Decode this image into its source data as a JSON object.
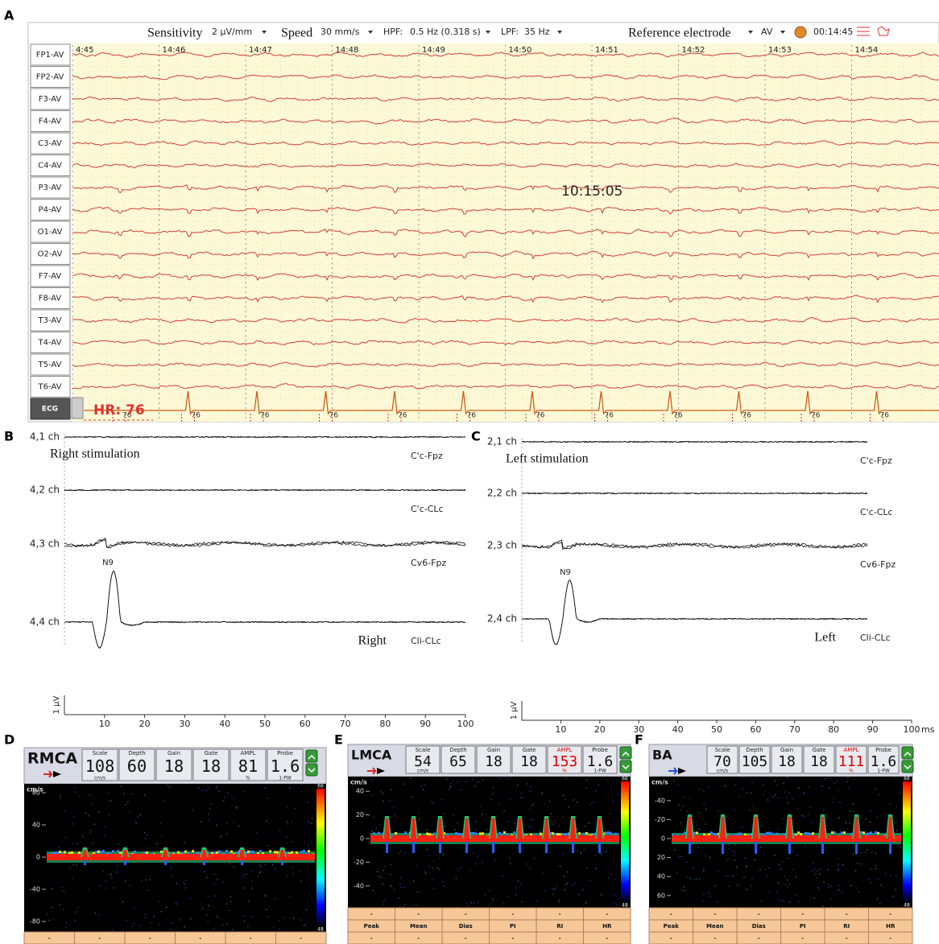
{
  "figure_labels": [
    "A",
    "B",
    "C",
    "D",
    "E",
    "F"
  ],
  "eeg": {
    "toolbar": {
      "sensitivity_label": "Sensitivity",
      "sensitivity": "2 µV/mm",
      "speed_label": "Speed",
      "speed": "30 mm/s",
      "hpf_label": "HPF:",
      "hpf": "0.5 Hz (0.318 s)",
      "lpf_label": "LPF:",
      "lpf": "35 Hz",
      "reference_label": "Reference electrode",
      "reference": "AV",
      "clock": "00:14:45"
    },
    "times": [
      "4:45",
      "14:46",
      "14:47",
      "14:48",
      "14:49",
      "14:50",
      "14:51",
      "14:52",
      "14:53",
      "14:54"
    ],
    "channels": [
      "FP1-AV",
      "FP2-AV",
      "F3-AV",
      "F4-AV",
      "C3-AV",
      "C4-AV",
      "P3-AV",
      "P4-AV",
      "O1-AV",
      "O2-AV",
      "F7-AV",
      "F8-AV",
      "T3-AV",
      "T4-AV",
      "T5-AV",
      "T6-AV"
    ],
    "ecg_label": "ECG",
    "timestamp": "10:15:05",
    "hr": "HR: 76",
    "beats": [
      "76",
      "76",
      "76",
      "76",
      "76",
      "76",
      "76",
      "76",
      "76",
      "76",
      "76",
      "76"
    ]
  },
  "sep_right": {
    "stimulation": "Right stimulation",
    "side": "Right",
    "channels": [
      {
        "name": "4,1 ch",
        "montage": "C'c-Fpz"
      },
      {
        "name": "4,2 ch",
        "montage": "C'c-CLc"
      },
      {
        "name": "4,3 ch",
        "montage": "Cv6-Fpz"
      },
      {
        "name": "4,4 ch",
        "montage": "Cli-CLc"
      }
    ],
    "peak": "N9",
    "scale": "1 µV",
    "xticks": [
      10,
      20,
      30,
      40,
      50,
      60,
      70,
      80,
      90,
      100
    ]
  },
  "sep_left": {
    "stimulation": "Left stimulation",
    "side": "Left",
    "channels": [
      {
        "name": "2,1 ch",
        "montage": "C'c-Fpz"
      },
      {
        "name": "2,2 ch",
        "montage": "C'c-CLc"
      },
      {
        "name": "2,3 ch",
        "montage": "Cv6-Fpz"
      },
      {
        "name": "2,4 ch",
        "montage": "Cli-CLc"
      }
    ],
    "peak": "N9",
    "scale": "1 µV",
    "xticks": [
      10,
      20,
      30,
      40,
      50,
      60,
      70,
      80,
      90,
      100
    ],
    "unit": "ms"
  },
  "doppler": [
    {
      "vessel": "RMCA",
      "fields": [
        {
          "label": "Scale",
          "value": "108",
          "unit": "cm/s"
        },
        {
          "label": "Depth",
          "value": "60"
        },
        {
          "label": "Gain",
          "value": "18"
        },
        {
          "label": "Gate",
          "value": "18"
        },
        {
          "label": "AMPL",
          "value": "81",
          "unit": "%"
        },
        {
          "label": "Probe",
          "value": "1.6",
          "unit": "1-PW"
        }
      ],
      "y_unit": "cm/s",
      "yticks": [
        80,
        40,
        0,
        -40,
        -80
      ],
      "color_max": "66",
      "color_min": "48",
      "table": [
        [
          "-",
          "-",
          "-",
          "-",
          "-",
          "-"
        ]
      ]
    },
    {
      "vessel": "LMCA",
      "fields": [
        {
          "label": "Scale",
          "value": "54",
          "unit": "cm/s"
        },
        {
          "label": "Depth",
          "value": "65"
        },
        {
          "label": "Gain",
          "value": "18"
        },
        {
          "label": "Gate",
          "value": "18"
        },
        {
          "label": "AMPL",
          "value": "153",
          "unit": "%",
          "color": "#e00000"
        },
        {
          "label": "Probe",
          "value": "1.6",
          "unit": "1-PW"
        }
      ],
      "y_unit": "cm/s",
      "yticks": [
        40,
        20,
        0,
        -20,
        -40
      ],
      "color_max": "66",
      "color_min": "48",
      "table": [
        [
          "-",
          "-",
          "-",
          "-",
          "-",
          "-"
        ],
        [
          "Peak",
          "Mean",
          "Dias",
          "PI",
          "RI",
          "HR"
        ],
        [
          "-",
          "-",
          "-",
          "-",
          "-",
          "-"
        ]
      ]
    },
    {
      "vessel": "BA",
      "fields": [
        {
          "label": "Scale",
          "value": "70",
          "unit": "cm/s"
        },
        {
          "label": "Depth",
          "value": "105"
        },
        {
          "label": "Gain",
          "value": "18"
        },
        {
          "label": "Gate",
          "value": "18"
        },
        {
          "label": "AMPL",
          "value": "111",
          "unit": "%",
          "color": "#e00000"
        },
        {
          "label": "Probe",
          "value": "1.6",
          "unit": "1-PW"
        }
      ],
      "y_unit": "cm/s",
      "yticks": [
        -40,
        -20,
        0,
        20,
        40,
        60
      ],
      "color_max": "66",
      "color_min": "48",
      "table": [
        [
          "-",
          "-",
          "-",
          "-",
          "-",
          "-"
        ],
        [
          "Peak",
          "Mean",
          "Dias",
          "PI",
          "RI",
          "HR"
        ],
        [
          "-",
          "-",
          "-",
          "-",
          "-",
          "-"
        ]
      ]
    }
  ]
}
